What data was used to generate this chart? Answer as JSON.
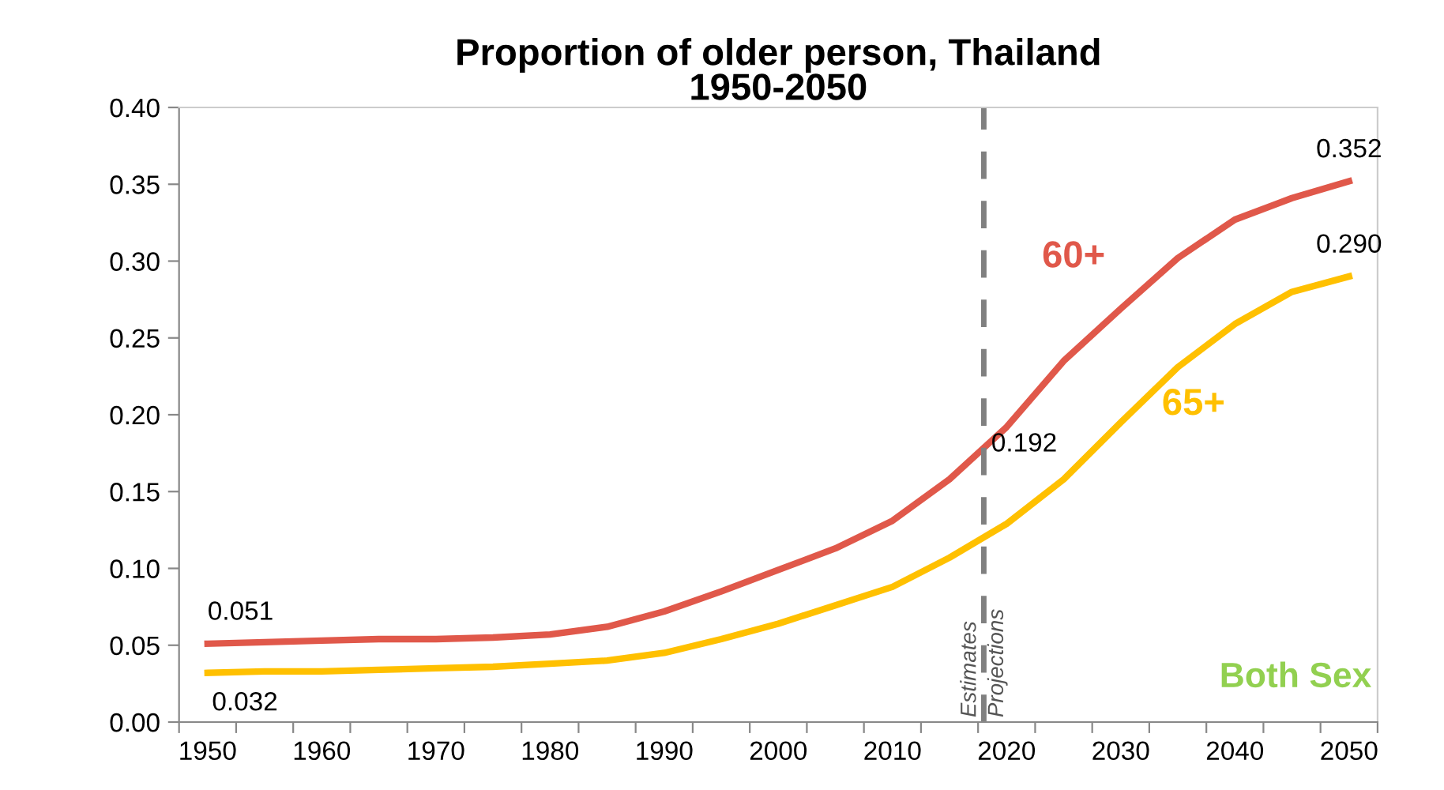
{
  "chart_data": {
    "type": "line",
    "title": "Proportion of older person, Thailand\n1950-2050",
    "x": [
      1950,
      1955,
      1960,
      1965,
      1970,
      1975,
      1980,
      1985,
      1990,
      1995,
      2000,
      2005,
      2010,
      2015,
      2020,
      2025,
      2030,
      2035,
      2040,
      2045,
      2050
    ],
    "series": [
      {
        "name": "60+",
        "color": "#e0584a",
        "values": [
          0.051,
          0.052,
          0.053,
          0.054,
          0.054,
          0.055,
          0.057,
          0.062,
          0.072,
          0.085,
          0.099,
          0.113,
          0.131,
          0.158,
          0.192,
          0.235,
          0.269,
          0.302,
          0.327,
          0.341,
          0.352
        ]
      },
      {
        "name": "65+",
        "color": "#ffc000",
        "values": [
          0.032,
          0.033,
          0.033,
          0.034,
          0.035,
          0.036,
          0.038,
          0.04,
          0.045,
          0.054,
          0.064,
          0.076,
          0.088,
          0.107,
          0.129,
          0.158,
          0.195,
          0.231,
          0.259,
          0.28,
          0.29
        ]
      }
    ],
    "xlim": [
      1947.5,
      2052.5
    ],
    "xticks": [
      {
        "value": 1947.5,
        "label": null
      },
      {
        "value": 1952.5,
        "label": null
      },
      {
        "value": 1957.5,
        "label": null
      },
      {
        "value": 1962.5,
        "label": null
      },
      {
        "value": 1967.5,
        "label": null
      },
      {
        "value": 1972.5,
        "label": null
      },
      {
        "value": 1977.5,
        "label": null
      },
      {
        "value": 1982.5,
        "label": null
      },
      {
        "value": 1987.5,
        "label": null
      },
      {
        "value": 1992.5,
        "label": null
      },
      {
        "value": 1997.5,
        "label": null
      },
      {
        "value": 2002.5,
        "label": null
      },
      {
        "value": 2007.5,
        "label": null
      },
      {
        "value": 2012.5,
        "label": null
      },
      {
        "value": 2017.5,
        "label": null
      },
      {
        "value": 2022.5,
        "label": null
      },
      {
        "value": 2027.5,
        "label": null
      },
      {
        "value": 2032.5,
        "label": null
      },
      {
        "value": 2037.5,
        "label": null
      },
      {
        "value": 2042.5,
        "label": null
      },
      {
        "value": 2047.5,
        "label": null
      },
      {
        "value": 2052.5,
        "label": null
      },
      1950,
      1960,
      1970,
      1980,
      1990,
      2000,
      2010,
      2020,
      2030,
      2040,
      2050
    ],
    "ylim": [
      0,
      0.4
    ],
    "yticks": [
      {
        "value": 0,
        "label": "0.00"
      },
      {
        "value": 0.05,
        "label": "0.05"
      },
      {
        "value": 0.1,
        "label": "0.10"
      },
      {
        "value": 0.15,
        "label": "0.15"
      },
      {
        "value": 0.2,
        "label": "0.20"
      },
      {
        "value": 0.25,
        "label": "0.25"
      },
      {
        "value": 0.3,
        "label": "0.30"
      },
      {
        "value": 0.35,
        "label": "0.35"
      },
      {
        "value": 0.4,
        "label": "0.40"
      }
    ],
    "grid": false,
    "legend": false,
    "marker": "none",
    "line_style": "solid",
    "ref_lines": [
      {
        "axis": "x",
        "value": 2018,
        "label": "Estimates",
        "color": "#808080",
        "line_style": "dashed"
      }
    ],
    "annotations": [
      {
        "text": "0.051",
        "x": 1950,
        "y": 0.051
      },
      {
        "text": "0.032",
        "x": 1950,
        "y": 0.032
      },
      {
        "text": "0.192",
        "x": 2020,
        "y": 0.192
      },
      {
        "text": "0.352",
        "x": 2050,
        "y": 0.352
      },
      {
        "text": "0.290",
        "x": 2050,
        "y": 0.29
      },
      "Projections",
      "Both Sex"
    ]
  }
}
